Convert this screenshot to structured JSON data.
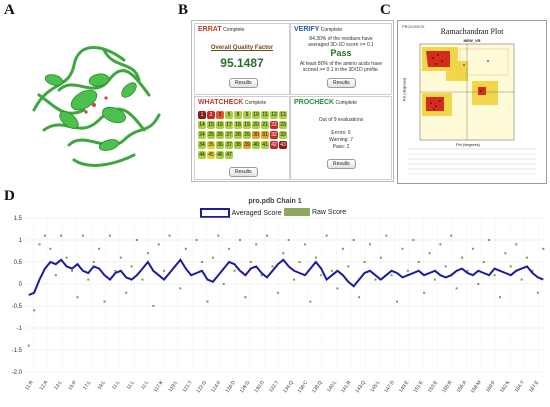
{
  "labels": {
    "a": "A",
    "b": "B",
    "c": "C",
    "d": "D"
  },
  "verify_panel": {
    "errat": {
      "name": "ERRAT",
      "status": "Complete",
      "factor_label": "Overall Quality Factor",
      "factor_value": "95.1487",
      "button": "Results"
    },
    "verify": {
      "name": "VERIFY",
      "status": "Complete",
      "line1": "84.30% of the residues have",
      "line2": "averaged 3D-1D score >= 0.1",
      "result": "Pass",
      "line3": "At least 80% of the amino acids have",
      "line4": "scored >= 0.1 in the 3D/1D profile.",
      "button": "Results"
    },
    "whatcheck": {
      "name": "WHATCHECK",
      "status": "Complete",
      "button": "Results",
      "cells": [
        "1",
        "2",
        "3",
        "5",
        "8",
        "9",
        "10",
        "11",
        "12",
        "13",
        "14",
        "15",
        "16",
        "17",
        "18",
        "19",
        "20",
        "21",
        "22",
        "23",
        "24",
        "25",
        "26",
        "27",
        "28",
        "29",
        "30",
        "31",
        "32",
        "33",
        "34",
        "35",
        "36",
        "37",
        "38",
        "39",
        "40",
        "41",
        "42",
        "43",
        "44",
        "45",
        "46",
        "47"
      ],
      "cell_colors": [
        "#8b1a1a",
        "#c72a2a",
        "#e05a2a",
        "#a8d040",
        "#a8d040",
        "#a8d040",
        "#a8d040",
        "#a8d040",
        "#a8d040",
        "#a8d040",
        "#a8d040",
        "#a8d040",
        "#a8d040",
        "#a8d040",
        "#a8d040",
        "#a8d040",
        "#a8d040",
        "#a8d040",
        "#c72a2a",
        "#a8d040",
        "#a8d040",
        "#a8d040",
        "#a8d040",
        "#a8d040",
        "#a8d040",
        "#a8d040",
        "#e5a52a",
        "#e5a52a",
        "#c72a2a",
        "#a8d040",
        "#a8d040",
        "#e5d03a",
        "#a8d040",
        "#a8d040",
        "#a8d040",
        "#e5a52a",
        "#a8d040",
        "#a8d040",
        "#c72a2a",
        "#8b1a1a",
        "#a8d040",
        "#e5d03a",
        "#a8d040",
        "#a8d040"
      ]
    },
    "procheck": {
      "name": "PROCHECK",
      "status": "Complete",
      "summary": "Out of 9 evaluations",
      "errors": "Errors: 0",
      "warnings": "Warning: 7",
      "pass": "Pass: 2",
      "button": "Results"
    }
  },
  "ramachandran": {
    "title": "Ramachandran Plot",
    "subtitle": "NEW_VR",
    "xlabel": "Phi (degrees)",
    "ylabel": "Psi (degrees)",
    "header": "PROCHECK"
  },
  "chart_data": {
    "type": "line",
    "title": "pro.pdb Chain 1",
    "legend_position": "top-center",
    "ylim": [
      -2.0,
      1.5
    ],
    "yticks": [
      "1.5",
      "1",
      "0.5",
      "0",
      "-0.5",
      "-1",
      "-1.5",
      "-2.0"
    ],
    "xticks": [
      "11:R",
      "12:A",
      "13:L",
      "15:P",
      "17:L",
      "19:L",
      "11:L",
      "11:L",
      "11:L",
      "117:K",
      "119:L",
      "121:T",
      "122:G",
      "124:F",
      "126:D",
      "128:G",
      "130:D",
      "132:T",
      "134:Q",
      "136:C",
      "138:Q",
      "140:L",
      "141:R",
      "143:Q",
      "145:L",
      "147:D",
      "149:E",
      "151:E",
      "153:E",
      "155:R",
      "156:A",
      "158:M",
      "160:F",
      "162:K",
      "164:T",
      "167:E"
    ],
    "series": [
      {
        "name": "Averaged Score",
        "color": "#1c1c9c",
        "values": [
          -0.25,
          -0.2,
          0.1,
          0.35,
          0.5,
          0.45,
          0.55,
          0.4,
          0.35,
          0.45,
          0.3,
          0.25,
          0.4,
          0.35,
          0.2,
          0.1,
          0.25,
          0.3,
          0.15,
          0.1,
          0.2,
          0.35,
          0.5,
          0.3,
          0.2,
          0.1,
          0.25,
          0.4,
          0.55,
          0.35,
          0.2,
          0.25,
          0.3,
          0.1,
          0.05,
          0.2,
          0.35,
          0.5,
          0.45,
          0.3,
          0.2,
          0.35,
          0.4,
          0.25,
          0.15,
          0.3,
          0.45,
          0.55,
          0.4,
          0.3,
          0.25,
          0.2,
          0.35,
          0.5,
          0.35,
          0.1,
          0.2,
          0.3,
          0.2,
          0.05,
          -0.05,
          0.1,
          0.25,
          0.3,
          0.2,
          0.1,
          0.2,
          0.3,
          0.25,
          0.15,
          0.2,
          0.25,
          0.3,
          0.2,
          0.25,
          0.3,
          0.2,
          0.15,
          0.2,
          0.3,
          0.35,
          0.25,
          0.2,
          0.3,
          0.25,
          0.2,
          0.35,
          0.3,
          0.25,
          0.2,
          0.3,
          0.35,
          0.4,
          0.25,
          0.15,
          0.1
        ]
      },
      {
        "name": "Raw Score",
        "color": "#7a9a4a",
        "values": [
          -1.4,
          -0.6,
          0.9,
          1.1,
          0.8,
          0.2,
          1.1,
          0.6,
          0.3,
          -0.3,
          1.1,
          0.1,
          0.5,
          0.8,
          -0.4,
          1.1,
          0.3,
          0.6,
          -0.2,
          0.4,
          1.0,
          0.1,
          0.7,
          -0.5,
          0.9,
          0.3,
          1.1,
          0.4,
          -0.1,
          0.8,
          0.2,
          1.0,
          0.5,
          -0.4,
          0.6,
          1.1,
          0.0,
          0.8,
          0.3,
          1.0,
          -0.3,
          0.5,
          0.9,
          0.2,
          1.1,
          0.4,
          -0.2,
          0.7,
          1.0,
          0.1,
          0.5,
          0.9,
          -0.4,
          0.6,
          0.2,
          1.1,
          0.3,
          -0.1,
          0.8,
          0.4,
          1.0,
          -0.3,
          0.5,
          0.9,
          0.1,
          0.6,
          1.1,
          0.2,
          -0.4,
          0.8,
          0.3,
          1.0,
          0.5,
          -0.2,
          0.7,
          0.1,
          0.9,
          0.4,
          1.1,
          -0.1,
          0.6,
          0.3,
          0.8,
          0.0,
          0.5,
          1.0,
          0.2,
          -0.3,
          0.7,
          0.4,
          0.9,
          0.1,
          0.6,
          0.3,
          -0.2,
          0.8
        ]
      }
    ]
  }
}
